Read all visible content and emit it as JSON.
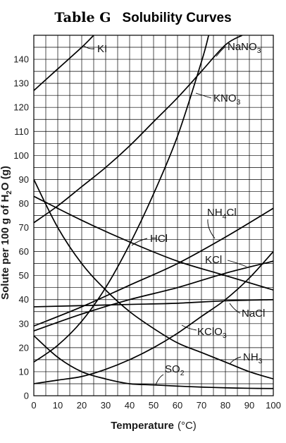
{
  "page": {
    "title_table": "Table G",
    "title_main": "Solubility Curves"
  },
  "chart_data": {
    "type": "line",
    "title": "Solubility Curves",
    "xlabel": "Temperature",
    "xlabel_unit": "(°C)",
    "ylabel": "Solute per 100 g of H",
    "ylabel_sub": "2",
    "ylabel_tail": "O (g)",
    "xlim": [
      0,
      100
    ],
    "ylim": [
      0,
      150
    ],
    "x_ticks": [
      0,
      10,
      20,
      30,
      40,
      50,
      60,
      70,
      80,
      90,
      100
    ],
    "y_ticks": [
      0,
      10,
      20,
      30,
      40,
      50,
      60,
      70,
      80,
      90,
      100,
      110,
      120,
      130,
      140
    ],
    "grid": true,
    "series": [
      {
        "name": "KI",
        "label_main": "KI",
        "label_sub": "",
        "label_tail": "",
        "x": [
          0,
          10,
          20,
          25
        ],
        "y": [
          127,
          136,
          145,
          150
        ]
      },
      {
        "name": "NaNO3",
        "label_main": "NaNO",
        "label_sub": "3",
        "label_tail": "",
        "x": [
          0,
          10,
          20,
          30,
          40,
          50,
          60,
          70,
          80,
          87
        ],
        "y": [
          72,
          79,
          87,
          95,
          104,
          114,
          124,
          135,
          146,
          150
        ]
      },
      {
        "name": "KNO3",
        "label_main": "KNO",
        "label_sub": "3",
        "label_tail": "",
        "x": [
          0,
          10,
          20,
          30,
          40,
          50,
          60,
          70,
          73
        ],
        "y": [
          14,
          21,
          31,
          45,
          63,
          84,
          108,
          139,
          150
        ]
      },
      {
        "name": "NH4Cl",
        "label_main": "NH",
        "label_sub": "4",
        "label_tail": "Cl",
        "x": [
          0,
          20,
          40,
          60,
          80,
          100
        ],
        "y": [
          29,
          37,
          46,
          55,
          66,
          78
        ]
      },
      {
        "name": "HCl",
        "label_main": "HCl",
        "label_sub": "",
        "label_tail": "",
        "x": [
          0,
          20,
          40,
          60,
          80,
          100
        ],
        "y": [
          83,
          73,
          64,
          56,
          50,
          44
        ]
      },
      {
        "name": "KCl",
        "label_main": "KCl",
        "label_sub": "",
        "label_tail": "",
        "x": [
          0,
          20,
          40,
          60,
          80,
          100
        ],
        "y": [
          27,
          34,
          40,
          45,
          51,
          56
        ]
      },
      {
        "name": "NaCl",
        "label_main": "NaCl",
        "label_sub": "",
        "label_tail": "",
        "x": [
          0,
          20,
          40,
          60,
          80,
          100
        ],
        "y": [
          37,
          37.5,
          38,
          38.5,
          39.5,
          40
        ]
      },
      {
        "name": "KClO3",
        "label_main": "KClO",
        "label_sub": "3",
        "label_tail": "",
        "x": [
          0,
          10,
          20,
          30,
          40,
          50,
          60,
          70,
          80,
          90,
          100
        ],
        "y": [
          5,
          6.5,
          8,
          11,
          15,
          20,
          26,
          33,
          40,
          49,
          60
        ]
      },
      {
        "name": "NH3",
        "label_main": "NH",
        "label_sub": "3",
        "label_tail": "",
        "x": [
          0,
          10,
          20,
          30,
          40,
          50,
          60,
          70,
          80,
          90,
          100
        ],
        "y": [
          90,
          70,
          55,
          44,
          35,
          28,
          22,
          18,
          14,
          10,
          7
        ]
      },
      {
        "name": "SO2",
        "label_main": "SO",
        "label_sub": "2",
        "label_tail": "",
        "x": [
          0,
          10,
          20,
          30,
          40,
          50,
          60,
          70,
          80,
          90,
          100
        ],
        "y": [
          25,
          16,
          10,
          7,
          5,
          4.5,
          4,
          3.6,
          3.3,
          3.1,
          3
        ]
      }
    ]
  }
}
